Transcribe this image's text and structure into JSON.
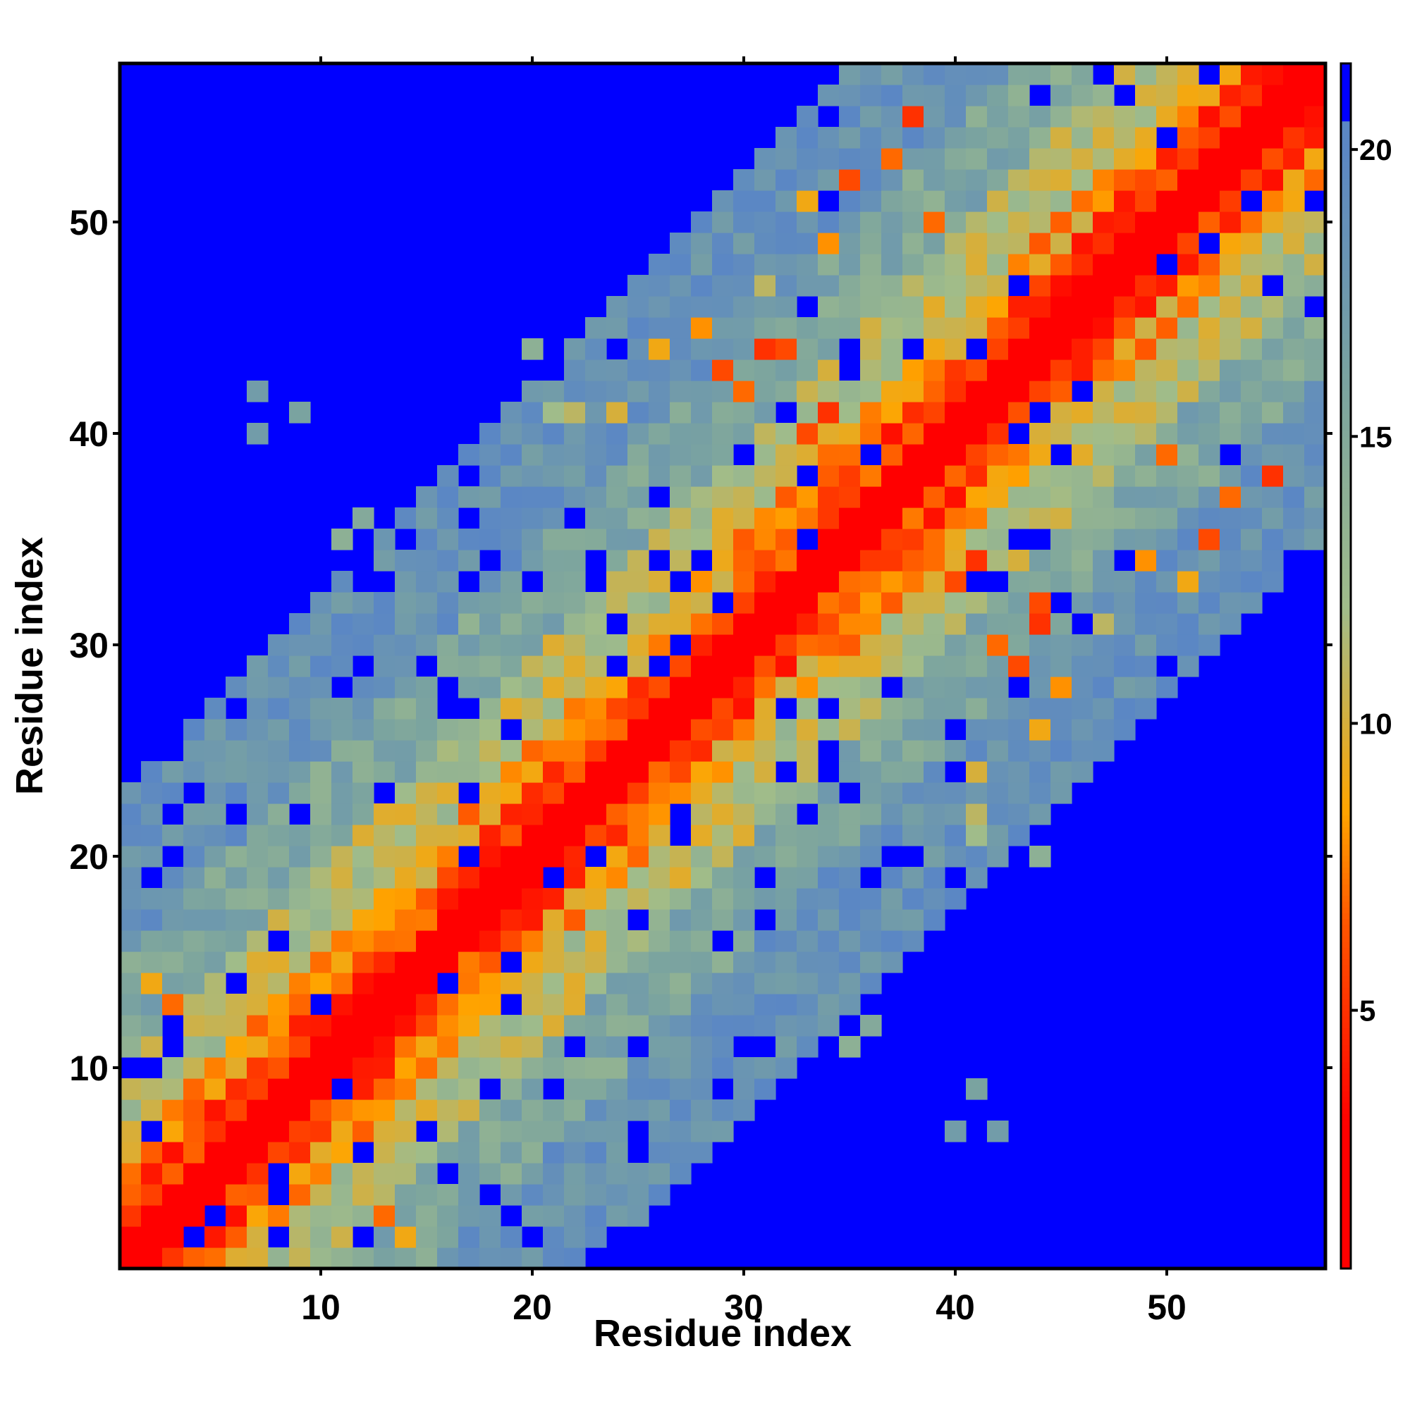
{
  "chart_data": {
    "type": "heatmap",
    "title": "",
    "xlabel": "Residue index",
    "ylabel": "Residue index",
    "n_residues": 57,
    "x_range": [
      0.5,
      57.5
    ],
    "y_range": [
      0.5,
      57.5
    ],
    "x_ticks": [
      10,
      20,
      30,
      40,
      50
    ],
    "x_tick_labels": [
      "10",
      "20",
      "30",
      "40",
      "50"
    ],
    "y_ticks": [
      10,
      20,
      30,
      40,
      50
    ],
    "y_tick_labels": [
      "10",
      "20",
      "30",
      "40",
      "50"
    ],
    "value_description": "pairwise residue distance; symmetric matrix, blue where value >= 20.5",
    "diagonal_band": [
      {
        "max_offset": 1,
        "value": 1.5
      },
      {
        "max_offset": 3,
        "value": 5.5
      },
      {
        "max_offset": 5,
        "value": 8.5
      },
      {
        "max_offset": 9,
        "value": 11.5
      },
      {
        "max_offset": 14,
        "value": 15.5
      },
      {
        "max_offset": 22,
        "value": 18.5
      }
    ],
    "background_value": 21,
    "extra_contacts": [
      {
        "i": 2,
        "j": 14,
        "value": 9
      },
      {
        "i": 3,
        "j": 13,
        "value": 7
      },
      {
        "i": 7,
        "j": 42,
        "value": 17
      },
      {
        "i": 7,
        "j": 40,
        "value": 17
      },
      {
        "i": 9,
        "j": 41,
        "value": 16
      },
      {
        "i": 31,
        "j": 44,
        "value": 5
      },
      {
        "i": 32,
        "j": 44,
        "value": 6
      },
      {
        "i": 33,
        "j": 40,
        "value": 6
      },
      {
        "i": 34,
        "j": 41,
        "value": 5
      },
      {
        "i": 30,
        "j": 42,
        "value": 7
      },
      {
        "i": 29,
        "j": 43,
        "value": 6
      },
      {
        "i": 28,
        "j": 45,
        "value": 8
      },
      {
        "i": 26,
        "j": 44,
        "value": 9
      },
      {
        "i": 24,
        "j": 41,
        "value": 10
      },
      {
        "i": 22,
        "j": 41,
        "value": 11
      },
      {
        "i": 35,
        "j": 52,
        "value": 6
      },
      {
        "i": 37,
        "j": 53,
        "value": 7
      },
      {
        "i": 39,
        "j": 50,
        "value": 7
      },
      {
        "i": 34,
        "j": 49,
        "value": 8
      },
      {
        "i": 33,
        "j": 51,
        "value": 9
      },
      {
        "i": 31,
        "j": 47,
        "value": 11
      },
      {
        "i": 21,
        "j": 41,
        "value": 12
      },
      {
        "i": 38,
        "j": 55,
        "value": 5
      },
      {
        "i": 11,
        "j": 35,
        "value": 14
      },
      {
        "i": 12,
        "j": 36,
        "value": 15
      },
      {
        "i": 20,
        "j": 44,
        "value": 14
      }
    ],
    "colorbar": {
      "range": [
        0.5,
        21.5
      ],
      "ticks": [
        5,
        10,
        15,
        20
      ],
      "tick_labels": [
        "5",
        "10",
        "15",
        "20"
      ],
      "stops": [
        {
          "value": 3.0,
          "color": "#ff0000"
        },
        {
          "value": 6.5,
          "color": "#ff5500"
        },
        {
          "value": 8.5,
          "color": "#ffa500"
        },
        {
          "value": 12.0,
          "color": "#a0bc8a"
        },
        {
          "value": 16.0,
          "color": "#7aa3a0"
        },
        {
          "value": 20.0,
          "color": "#5b87c4"
        },
        {
          "value": 20.5,
          "color": "#0000ff"
        }
      ]
    }
  }
}
